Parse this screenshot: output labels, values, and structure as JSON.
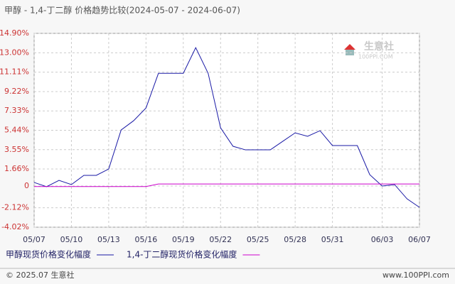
{
  "chart_data": {
    "type": "line",
    "title": "甲醇 - 1,4-丁二醇 价格趋势比较(2024-05-07 - 2024-06-07)",
    "categories": [
      "05/07",
      null,
      null,
      "05/10",
      null,
      null,
      "05/13",
      null,
      null,
      "05/16",
      null,
      null,
      "05/19",
      null,
      null,
      "05/22",
      null,
      null,
      "05/25",
      null,
      null,
      "05/28",
      null,
      null,
      "05/31",
      null,
      null,
      null,
      "06/03",
      null,
      null,
      "06/07"
    ],
    "series": [
      {
        "name": "甲醇现货价格变化幅度",
        "color": "#1a1aa6",
        "values": [
          0.35,
          -0.07,
          0.55,
          0.14,
          1.04,
          1.04,
          1.66,
          5.47,
          6.37,
          7.62,
          11.0,
          11.0,
          11.0,
          13.5,
          11.0,
          5.68,
          3.88,
          3.53,
          3.53,
          3.53,
          4.36,
          5.19,
          4.85,
          5.4,
          3.95,
          3.95,
          3.95,
          1.11,
          0.0,
          0.14,
          -1.25,
          -2.08
        ]
      },
      {
        "name": "1,4-丁二醇现货价格变化幅度",
        "color": "#cc00cc",
        "values": [
          -0.05,
          -0.05,
          -0.05,
          -0.05,
          -0.05,
          -0.05,
          -0.05,
          -0.05,
          -0.05,
          -0.05,
          0.2,
          0.2,
          0.2,
          0.2,
          0.2,
          0.2,
          0.2,
          0.2,
          0.2,
          0.2,
          0.2,
          0.2,
          0.2,
          0.2,
          0.2,
          0.2,
          0.2,
          0.2,
          0.2,
          0.2,
          0.2,
          0.2
        ]
      }
    ],
    "ylim": [
      -4.02,
      14.9
    ],
    "yticks": [
      {
        "value": -4.02,
        "label": "-4.02%"
      },
      {
        "value": -2.12,
        "label": "-2.12%"
      },
      0,
      {
        "value": 1.66,
        "label": "1.66%"
      },
      {
        "value": 3.55,
        "label": "3.55%"
      },
      {
        "value": 5.44,
        "label": "5.44%"
      },
      {
        "value": 7.33,
        "label": "7.33%"
      },
      {
        "value": 9.22,
        "label": "9.22%"
      },
      {
        "value": 11.11,
        "label": "11.11%"
      },
      {
        "value": 13.0,
        "label": "13.00%"
      },
      {
        "value": 14.9,
        "label": "14.90%"
      }
    ],
    "grid": true
  },
  "logo": {
    "name": "生意社",
    "site": "100PPI.COM"
  },
  "footer": {
    "left": "© 2025.07 生意社",
    "right": "www.100PPI.com"
  }
}
